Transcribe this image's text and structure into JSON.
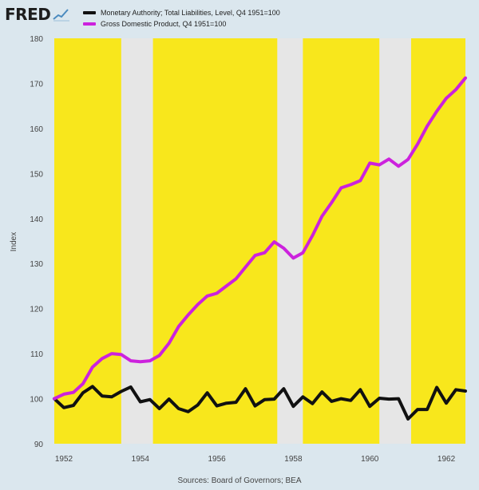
{
  "brand": {
    "name": "FRED",
    "icon": "fred-chart-logo-icon"
  },
  "source_text": "Sources: Board of Governors; BEA",
  "colors": {
    "background": "#dbe7ee",
    "recession_band": "#e6e6e6",
    "expansion_fill": "#f8e71c",
    "series_1": "#111111",
    "series_2": "#cc22dd"
  },
  "chart_data": {
    "type": "line",
    "ylabel": "Index",
    "xlabel": "",
    "xlim": [
      1951.75,
      1962.5
    ],
    "ylim": [
      90,
      180
    ],
    "yticks": [
      90,
      100,
      110,
      120,
      130,
      140,
      150,
      160,
      170,
      180
    ],
    "xticks": [
      1952,
      1954,
      1956,
      1958,
      1960,
      1962
    ],
    "recessions": [
      [
        1953.5,
        1954.33
      ],
      [
        1957.58,
        1958.25
      ],
      [
        1960.25,
        1961.08
      ]
    ],
    "background_color": "#f8e71c",
    "grid": false,
    "legend_position": "top-left",
    "series": [
      {
        "name": "Monetary Authority; Total Liabilities, Level, Q4 1951=100",
        "color": "#111111",
        "x": [
          1951.75,
          1952.0,
          1952.25,
          1952.5,
          1952.75,
          1953.0,
          1953.25,
          1953.5,
          1953.75,
          1954.0,
          1954.25,
          1954.5,
          1954.75,
          1955.0,
          1955.25,
          1955.5,
          1955.75,
          1956.0,
          1956.25,
          1956.5,
          1956.75,
          1957.0,
          1957.25,
          1957.5,
          1957.75,
          1958.0,
          1958.25,
          1958.5,
          1958.75,
          1959.0,
          1959.25,
          1959.5,
          1959.75,
          1960.0,
          1960.25,
          1960.5,
          1960.75,
          1961.0,
          1961.25,
          1961.5,
          1961.75,
          1962.0,
          1962.25,
          1962.5
        ],
        "values": [
          100.0,
          98.0,
          98.5,
          101.3,
          102.7,
          100.6,
          100.4,
          101.6,
          102.6,
          99.3,
          99.8,
          97.8,
          99.9,
          97.8,
          97.1,
          98.6,
          101.3,
          98.4,
          99.0,
          99.2,
          102.2,
          98.4,
          99.8,
          99.9,
          102.2,
          98.3,
          100.4,
          98.9,
          101.5,
          99.4,
          100.0,
          99.6,
          102.0,
          98.3,
          100.1,
          99.9,
          100.0,
          95.5,
          97.6,
          97.6,
          102.5,
          99.0,
          102.0,
          101.7
        ]
      },
      {
        "name": "Gross Domestic Product, Q4 1951=100",
        "color": "#cc22dd",
        "x": [
          1951.75,
          1952.0,
          1952.25,
          1952.5,
          1952.75,
          1953.0,
          1953.25,
          1953.5,
          1953.75,
          1954.0,
          1954.25,
          1954.5,
          1954.75,
          1955.0,
          1955.25,
          1955.5,
          1955.75,
          1956.0,
          1956.25,
          1956.5,
          1956.75,
          1957.0,
          1957.25,
          1957.5,
          1957.75,
          1958.0,
          1958.25,
          1958.5,
          1958.75,
          1959.0,
          1959.25,
          1959.5,
          1959.75,
          1960.0,
          1960.25,
          1960.5,
          1960.75,
          1961.0,
          1961.25,
          1961.5,
          1961.75,
          1962.0,
          1962.25,
          1962.5
        ],
        "values": [
          100.0,
          101.0,
          101.4,
          103.3,
          107.0,
          108.9,
          110.0,
          109.8,
          108.4,
          108.2,
          108.4,
          109.6,
          112.3,
          116.0,
          118.6,
          120.9,
          122.8,
          123.4,
          125.0,
          126.6,
          129.2,
          131.8,
          132.4,
          134.8,
          133.4,
          131.2,
          132.4,
          136.2,
          140.5,
          143.5,
          146.8,
          147.5,
          148.4,
          152.3,
          151.9,
          153.2,
          151.6,
          153.1,
          156.5,
          160.5,
          163.8,
          166.7,
          168.6,
          171.2
        ]
      }
    ]
  }
}
